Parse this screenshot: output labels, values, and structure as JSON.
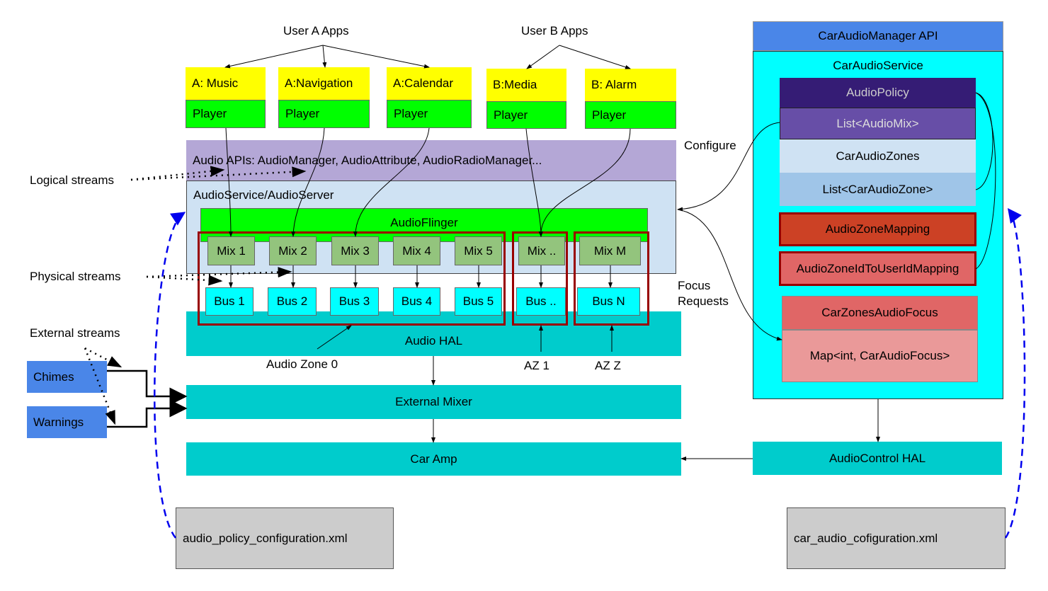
{
  "labels": {
    "user_a": "User A Apps",
    "user_b": "User B Apps",
    "logical": "Logical streams",
    "physical": "Physical streams",
    "external": "External streams",
    "configure": "Configure",
    "focus1": "Focus",
    "focus2": "Requests",
    "zone0": "Audio Zone 0",
    "az1": "AZ 1",
    "azz": "AZ Z"
  },
  "apps": [
    {
      "name": "A: Music",
      "player": "Player"
    },
    {
      "name": "A:Navigation",
      "player": "Player"
    },
    {
      "name": "A:Calendar",
      "player": "Player"
    },
    {
      "name": "B:Media",
      "player": "Player"
    },
    {
      "name": "B: Alarm",
      "player": "Player"
    }
  ],
  "audio_apis": "Audio APIs: AudioManager, AudioAttribute, AudioRadioManager...",
  "audio_service": "AudioService/AudioServer",
  "audio_flinger": "AudioFlinger",
  "mixes": [
    "Mix 1",
    "Mix 2",
    "Mix 3",
    "Mix 4",
    "Mix 5",
    "Mix ..",
    "Mix M"
  ],
  "buses": [
    "Bus 1",
    "Bus 2",
    "Bus 3",
    "Bus 4",
    "Bus 5",
    "Bus ..",
    "Bus N"
  ],
  "audio_hal": "Audio HAL",
  "external_mixer": "External Mixer",
  "car_amp": "Car Amp",
  "chimes": "Chimes",
  "warnings": "Warnings",
  "policy_xml": "audio_policy_configuration.xml",
  "car_xml": "car_audio_cofiguration.xml",
  "car": {
    "api": "CarAudioManager API",
    "service": "CarAudioService",
    "audio_policy": "AudioPolicy",
    "audio_mix": "List<AudioMix>",
    "zones": "CarAudioZones",
    "zone_list": "List<CarAudioZone>",
    "zone_mapping": "AudioZoneMapping",
    "user_mapping": "AudioZoneIdToUserIdMapping",
    "focus": "CarZonesAudioFocus",
    "focus_map": "Map<int, CarAudioFocus>",
    "control_hal": "AudioControl HAL"
  },
  "colors": {
    "yellow": "#ffff00",
    "green": "#00ff00",
    "mix": "#93c47d",
    "bus": "#00ffff",
    "teal": "#00cccc",
    "blue": "#4a86e8",
    "zone_border": "#990000",
    "purple_dark": "#351c75",
    "purple": "#674ea7",
    "lavender": "#b4a7d6"
  }
}
